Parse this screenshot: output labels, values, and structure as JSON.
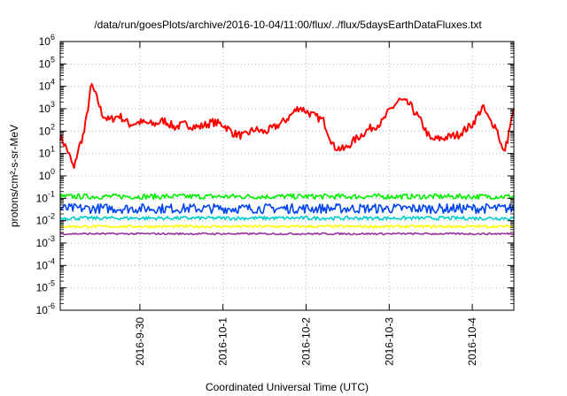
{
  "chart_data": {
    "type": "line",
    "title": "/data/run/goesPlots/archive/2016-10-04/11:00/flux/../flux/5daysEarthDataFluxes.txt",
    "xlabel": "Coordinated Universal Time (UTC)",
    "ylabel": "protons/cm²-s-sr-MeV",
    "y_scale": "log",
    "ylim": [
      1e-06,
      1000000.0
    ],
    "xlim": [
      "2016-09-29T01:00",
      "2016-10-04T12:00"
    ],
    "grid": true,
    "legend": "none",
    "x_ticks": [
      "2016-9-30",
      "2016-10-1",
      "2016-10-2",
      "2016-10-3",
      "2016-10-4"
    ],
    "y_ticks": [
      {
        "base": "10",
        "exp": "-6"
      },
      {
        "base": "10",
        "exp": "-5"
      },
      {
        "base": "10",
        "exp": "-4"
      },
      {
        "base": "10",
        "exp": "-3"
      },
      {
        "base": "10",
        "exp": "-2"
      },
      {
        "base": "10",
        "exp": "-1"
      },
      {
        "base": "10",
        "exp": "0"
      },
      {
        "base": "10",
        "exp": "1"
      },
      {
        "base": "10",
        "exp": "2"
      },
      {
        "base": "10",
        "exp": "3"
      },
      {
        "base": "10",
        "exp": "4"
      },
      {
        "base": "10",
        "exp": "5"
      },
      {
        "base": "10",
        "exp": "6"
      }
    ],
    "series": [
      {
        "color": "#ff0000",
        "x": [
          "2016-09-29T01:00",
          "2016-09-29T03:00",
          "2016-09-29T05:00",
          "2016-09-29T06:00",
          "2016-09-29T08:00",
          "2016-09-29T10:00",
          "2016-09-29T12:00",
          "2016-09-29T13:00",
          "2016-09-29T15:00",
          "2016-09-29T18:00",
          "2016-09-29T21:00",
          "2016-09-30T00:00",
          "2016-09-30T04:00",
          "2016-09-30T07:00",
          "2016-09-30T10:00",
          "2016-09-30T13:00",
          "2016-09-30T17:00",
          "2016-09-30T21:00",
          "2016-10-01T00:00",
          "2016-10-01T03:00",
          "2016-10-01T06:00",
          "2016-10-01T09:00",
          "2016-10-01T12:00",
          "2016-10-01T15:00",
          "2016-10-01T18:00",
          "2016-10-01T22:00",
          "2016-10-02T02:00",
          "2016-10-02T05:00",
          "2016-10-02T08:00",
          "2016-10-02T11:00",
          "2016-10-02T14:00",
          "2016-10-02T18:00",
          "2016-10-02T22:00",
          "2016-10-03T00:00",
          "2016-10-03T03:00",
          "2016-10-03T06:00",
          "2016-10-03T09:00",
          "2016-10-03T12:00",
          "2016-10-03T16:00",
          "2016-10-03T20:00",
          "2016-10-04T00:00",
          "2016-10-04T03:00",
          "2016-10-04T05:00",
          "2016-10-04T07:00",
          "2016-10-04T09:00",
          "2016-10-04T10:00",
          "2016-10-04T11:00",
          "2016-10-04T12:00"
        ],
        "values": [
          60,
          15,
          2,
          12,
          100,
          12000,
          2000,
          600,
          300,
          500,
          200,
          250,
          200,
          300,
          150,
          200,
          150,
          250,
          200,
          80,
          60,
          120,
          90,
          150,
          300,
          1200,
          500,
          300,
          20,
          15,
          40,
          120,
          250,
          800,
          2500,
          1500,
          300,
          40,
          50,
          70,
          200,
          1200,
          300,
          150,
          10,
          30,
          200,
          800
        ]
      },
      {
        "color": "#00ee00",
        "x": [
          "2016-09-29T01:00",
          "2016-09-30T00:00",
          "2016-10-01T00:00",
          "2016-10-02T00:00",
          "2016-10-03T00:00",
          "2016-10-04T00:00",
          "2016-10-04T12:00"
        ],
        "values": [
          0.12,
          0.12,
          0.12,
          0.12,
          0.12,
          0.12,
          0.12
        ]
      },
      {
        "color": "#0044ee",
        "x": [
          "2016-09-29T01:00",
          "2016-09-30T00:00",
          "2016-10-01T00:00",
          "2016-10-02T00:00",
          "2016-10-03T00:00",
          "2016-10-04T00:00",
          "2016-10-04T12:00"
        ],
        "values": [
          0.035,
          0.035,
          0.035,
          0.035,
          0.035,
          0.035,
          0.035
        ]
      },
      {
        "color": "#00cccc",
        "x": [
          "2016-09-29T01:00",
          "2016-09-30T00:00",
          "2016-10-01T00:00",
          "2016-10-02T00:00",
          "2016-10-03T00:00",
          "2016-10-04T00:00",
          "2016-10-04T12:00"
        ],
        "values": [
          0.013,
          0.013,
          0.013,
          0.013,
          0.013,
          0.013,
          0.013
        ]
      },
      {
        "color": "#ffff00",
        "x": [
          "2016-09-29T01:00",
          "2016-09-30T00:00",
          "2016-10-01T00:00",
          "2016-10-02T00:00",
          "2016-10-03T00:00",
          "2016-10-04T00:00",
          "2016-10-04T12:00"
        ],
        "values": [
          0.0055,
          0.0055,
          0.0055,
          0.0055,
          0.0055,
          0.0055,
          0.0055
        ]
      },
      {
        "color": "#993399",
        "x": [
          "2016-09-29T01:00",
          "2016-09-30T00:00",
          "2016-10-01T00:00",
          "2016-10-02T00:00",
          "2016-10-03T00:00",
          "2016-10-04T00:00",
          "2016-10-04T12:00"
        ],
        "values": [
          0.0026,
          0.0026,
          0.0026,
          0.0026,
          0.0026,
          0.0026,
          0.0026
        ]
      }
    ]
  }
}
